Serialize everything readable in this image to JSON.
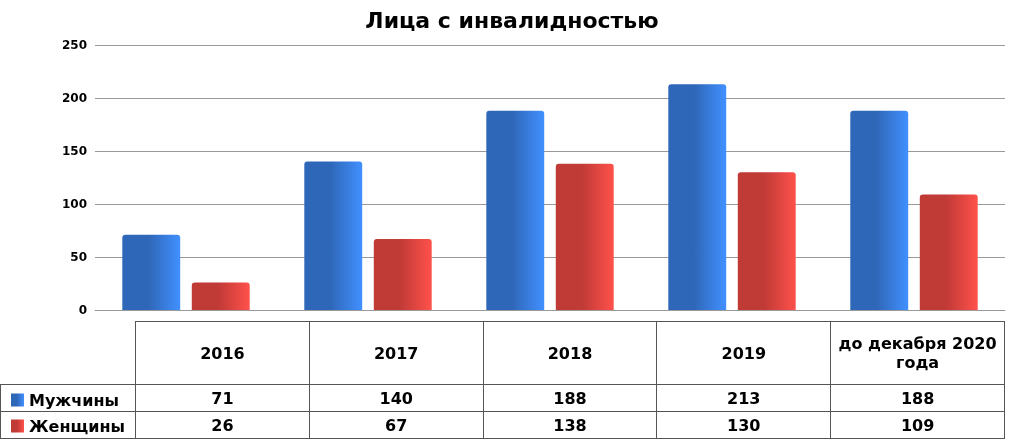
{
  "chart_data": {
    "type": "bar",
    "title": "Лица с инвалидностью",
    "categories": [
      "2016",
      "2017",
      "2018",
      "2019",
      "до декабря 2020 года"
    ],
    "series": [
      {
        "name": "Мужчины",
        "color": "#2f67b8",
        "values": [
          71,
          140,
          188,
          213,
          188
        ]
      },
      {
        "name": "Женщины",
        "color": "#c03a36",
        "values": [
          26,
          67,
          138,
          130,
          109
        ]
      }
    ],
    "ylim": [
      0,
      250
    ],
    "yticks": [
      0,
      50,
      100,
      150,
      200,
      250
    ],
    "grid": "y",
    "legend": "bottom left",
    "data_labels": true
  }
}
